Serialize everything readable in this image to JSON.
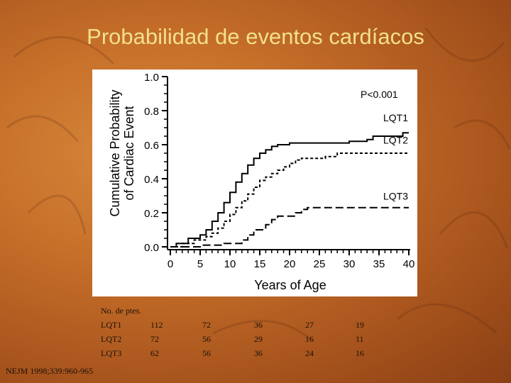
{
  "slide": {
    "title": "Probabilidad de eventos cardíacos",
    "citation": "NEJM 1998;339:960-965"
  },
  "chart_data": {
    "type": "line",
    "ylabel": "Cumulative Probability of Cardiac Event",
    "ylabel_lines": [
      "Cumulative Probability",
      "of Cardiac Event"
    ],
    "xlabel": "Years of Age",
    "annotation": "P<0.001",
    "xlim": [
      0,
      40
    ],
    "ylim": [
      0,
      1.0
    ],
    "xticks": [
      0,
      5,
      10,
      15,
      20,
      25,
      30,
      35,
      40
    ],
    "yticks": [
      0.0,
      0.2,
      0.4,
      0.6,
      0.8,
      1.0
    ],
    "ytick_labels": [
      "0.0",
      "0.2",
      "0.4",
      "0.6",
      "0.8",
      "1.0"
    ],
    "series": [
      {
        "name": "LQT1",
        "style": "solid",
        "points": [
          [
            0,
            0.0
          ],
          [
            1,
            0.02
          ],
          [
            3,
            0.05
          ],
          [
            5,
            0.07
          ],
          [
            6,
            0.1
          ],
          [
            7,
            0.15
          ],
          [
            8,
            0.2
          ],
          [
            9,
            0.26
          ],
          [
            10,
            0.32
          ],
          [
            11,
            0.38
          ],
          [
            12,
            0.43
          ],
          [
            13,
            0.48
          ],
          [
            14,
            0.52
          ],
          [
            15,
            0.55
          ],
          [
            16,
            0.57
          ],
          [
            17,
            0.59
          ],
          [
            18,
            0.6
          ],
          [
            20,
            0.61
          ],
          [
            25,
            0.61
          ],
          [
            30,
            0.62
          ],
          [
            33,
            0.63
          ],
          [
            34,
            0.65
          ],
          [
            39,
            0.67
          ],
          [
            40,
            0.67
          ]
        ]
      },
      {
        "name": "LQT2",
        "style": "dashed",
        "points": [
          [
            0,
            0.0
          ],
          [
            2,
            0.02
          ],
          [
            4,
            0.04
          ],
          [
            6,
            0.06
          ],
          [
            7,
            0.08
          ],
          [
            8,
            0.11
          ],
          [
            9,
            0.15
          ],
          [
            10,
            0.19
          ],
          [
            11,
            0.23
          ],
          [
            12,
            0.27
          ],
          [
            13,
            0.31
          ],
          [
            14,
            0.35
          ],
          [
            15,
            0.39
          ],
          [
            16,
            0.41
          ],
          [
            17,
            0.43
          ],
          [
            18,
            0.45
          ],
          [
            19,
            0.47
          ],
          [
            20,
            0.49
          ],
          [
            21,
            0.51
          ],
          [
            22,
            0.52
          ],
          [
            24,
            0.52
          ],
          [
            26,
            0.53
          ],
          [
            28,
            0.55
          ],
          [
            40,
            0.55
          ]
        ]
      },
      {
        "name": "LQT3",
        "style": "long-dashed",
        "points": [
          [
            0,
            0.0
          ],
          [
            5,
            0.01
          ],
          [
            9,
            0.02
          ],
          [
            12,
            0.04
          ],
          [
            13,
            0.07
          ],
          [
            14,
            0.1
          ],
          [
            16,
            0.13
          ],
          [
            17,
            0.16
          ],
          [
            18,
            0.18
          ],
          [
            21,
            0.2
          ],
          [
            22,
            0.22
          ],
          [
            23,
            0.23
          ],
          [
            40,
            0.23
          ]
        ]
      }
    ],
    "series_label_y": [
      0.72,
      0.59,
      0.26
    ]
  },
  "risk_table": {
    "header": "No. de ptes.",
    "rows": [
      {
        "label": "LQT1",
        "values": [
          "112",
          "72",
          "36",
          "27",
          "19"
        ]
      },
      {
        "label": "LQT2",
        "values": [
          "72",
          "56",
          "29",
          "16",
          "11"
        ]
      },
      {
        "label": "LQT3",
        "values": [
          "62",
          "56",
          "36",
          "24",
          "16"
        ]
      }
    ]
  }
}
